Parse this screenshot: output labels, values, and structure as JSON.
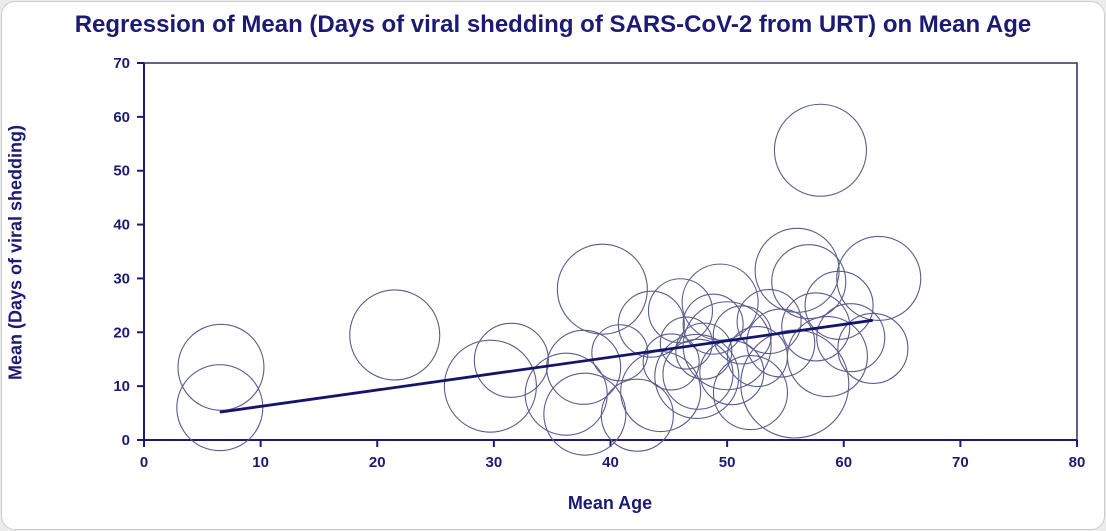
{
  "chart_data": {
    "type": "scatter",
    "subtype": "bubble-meta-regression",
    "title": "Regression of Mean (Days of viral shedding of SARS-CoV-2 from URT) on Mean Age",
    "xlabel": "Mean Age",
    "ylabel": "Mean (Days of viral shedding)",
    "xlim": [
      0,
      80
    ],
    "ylim": [
      0,
      70
    ],
    "xticks": [
      0,
      10,
      20,
      30,
      40,
      50,
      60,
      70,
      80
    ],
    "yticks": [
      0,
      10,
      20,
      30,
      40,
      50,
      60,
      70
    ],
    "grid": false,
    "legend": "none",
    "bubbles": [
      {
        "x": 6.6,
        "y": 13.5,
        "r": 43
      },
      {
        "x": 6.5,
        "y": 6.0,
        "r": 43
      },
      {
        "x": 21.5,
        "y": 19.5,
        "r": 45
      },
      {
        "x": 29.7,
        "y": 10.0,
        "r": 46
      },
      {
        "x": 31.5,
        "y": 14.8,
        "r": 37
      },
      {
        "x": 36.2,
        "y": 8.5,
        "r": 41
      },
      {
        "x": 37.8,
        "y": 4.8,
        "r": 41
      },
      {
        "x": 37.7,
        "y": 13.5,
        "r": 37
      },
      {
        "x": 39.3,
        "y": 28.0,
        "r": 45
      },
      {
        "x": 40.8,
        "y": 16.2,
        "r": 28
      },
      {
        "x": 42.3,
        "y": 4.6,
        "r": 36
      },
      {
        "x": 43.5,
        "y": 21.5,
        "r": 33
      },
      {
        "x": 44.3,
        "y": 9.0,
        "r": 40
      },
      {
        "x": 45.2,
        "y": 14.5,
        "r": 28
      },
      {
        "x": 46.0,
        "y": 24.0,
        "r": 32
      },
      {
        "x": 46.5,
        "y": 18.0,
        "r": 26
      },
      {
        "x": 47.4,
        "y": 11.8,
        "r": 42
      },
      {
        "x": 47.5,
        "y": 12.2,
        "r": 35
      },
      {
        "x": 48.0,
        "y": 16.5,
        "r": 28
      },
      {
        "x": 48.8,
        "y": 21.5,
        "r": 30
      },
      {
        "x": 49.4,
        "y": 25.6,
        "r": 38
      },
      {
        "x": 50.0,
        "y": 17.5,
        "r": 44
      },
      {
        "x": 50.4,
        "y": 12.5,
        "r": 32
      },
      {
        "x": 51.3,
        "y": 19.5,
        "r": 29
      },
      {
        "x": 52.0,
        "y": 8.8,
        "r": 37
      },
      {
        "x": 52.6,
        "y": 15.5,
        "r": 30
      },
      {
        "x": 53.6,
        "y": 22.0,
        "r": 32
      },
      {
        "x": 54.6,
        "y": 18.0,
        "r": 34
      },
      {
        "x": 55.8,
        "y": 10.4,
        "r": 54
      },
      {
        "x": 56.0,
        "y": 31.5,
        "r": 42
      },
      {
        "x": 57.0,
        "y": 29.4,
        "r": 37
      },
      {
        "x": 57.6,
        "y": 21.0,
        "r": 34
      },
      {
        "x": 58.0,
        "y": 53.8,
        "r": 46
      },
      {
        "x": 58.6,
        "y": 15.5,
        "r": 40
      },
      {
        "x": 59.6,
        "y": 25.0,
        "r": 34
      },
      {
        "x": 60.6,
        "y": 19.0,
        "r": 34
      },
      {
        "x": 62.5,
        "y": 17.0,
        "r": 35
      },
      {
        "x": 63.0,
        "y": 30.0,
        "r": 42
      }
    ],
    "bubble_radius_units": "px",
    "regression_line": {
      "x1": 6.6,
      "y1": 5.2,
      "x2": 62.4,
      "y2": 22.2
    },
    "colors": {
      "text": "#1b1b75",
      "axis": "#1b1b75",
      "frame": "#3a3a75",
      "bubble_stroke": "#5b5b8f",
      "regression": "#14146b",
      "background": "#ffffff",
      "panel_border": "#cccccc"
    }
  }
}
